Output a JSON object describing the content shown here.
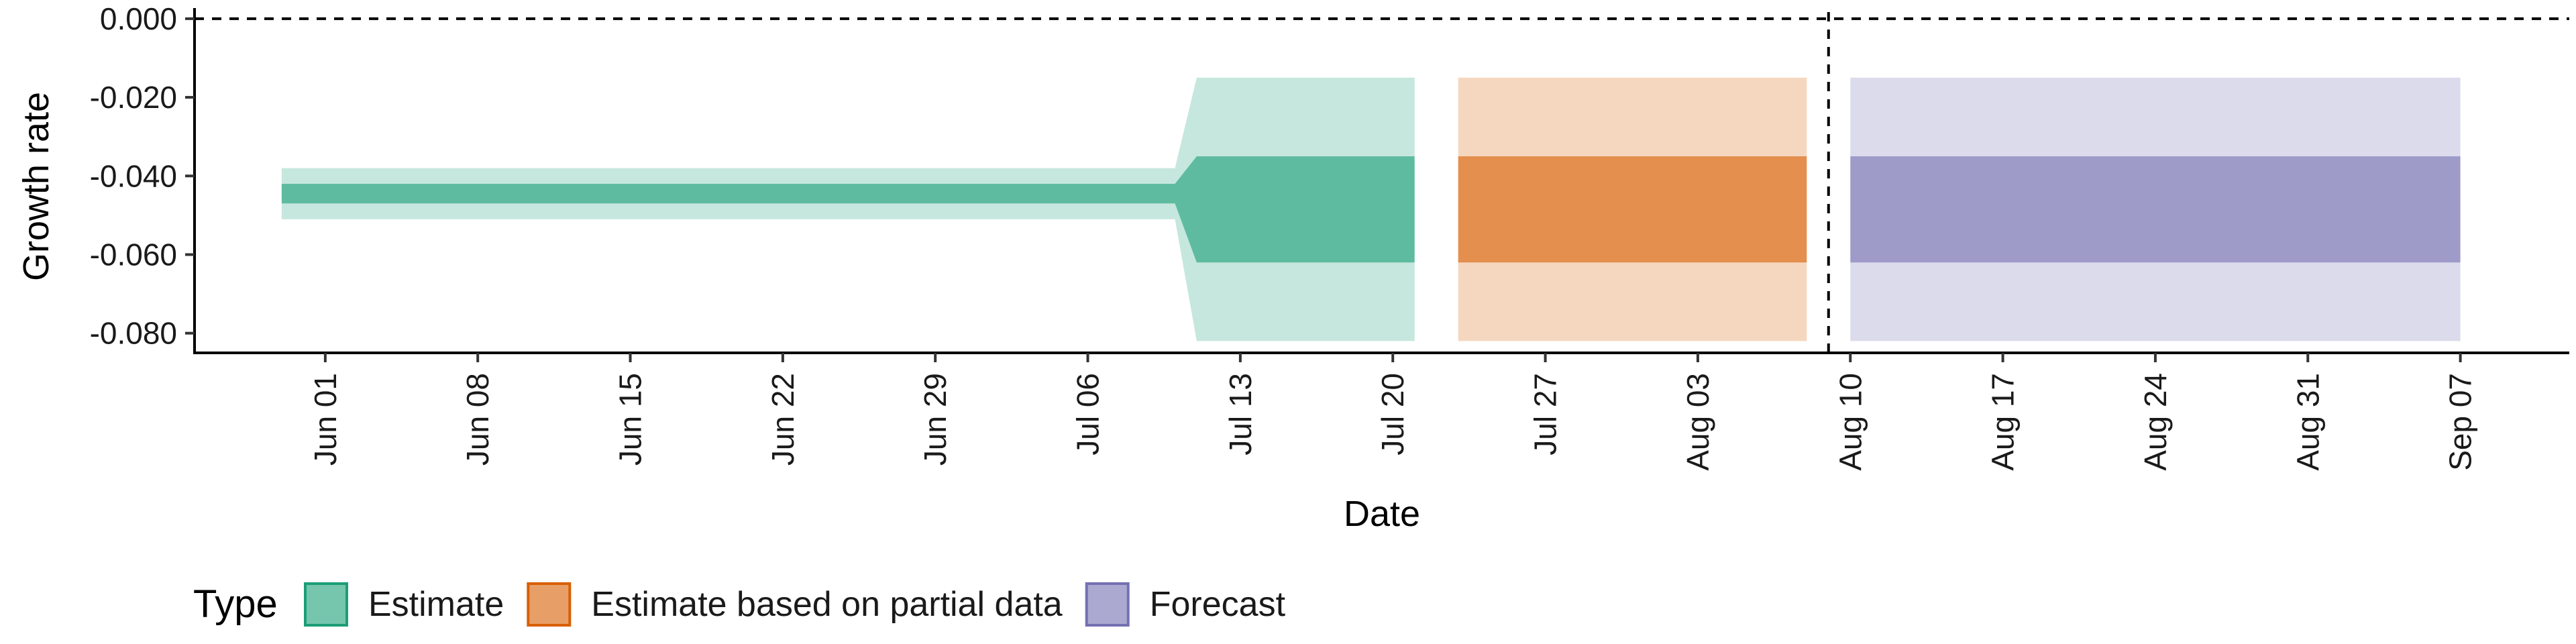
{
  "chart_data": {
    "type": "area",
    "xlabel": "Date",
    "ylabel": "Growth rate",
    "x_ticks": [
      "Jun 01",
      "Jun 08",
      "Jun 15",
      "Jun 22",
      "Jun 29",
      "Jul 06",
      "Jul 13",
      "Jul 20",
      "Jul 27",
      "Aug 03",
      "Aug 10",
      "Aug 17",
      "Aug 24",
      "Aug 31",
      "Sep 07"
    ],
    "y_ticks": [
      "0.000",
      "-0.020",
      "-0.040",
      "-0.060",
      "-0.080"
    ],
    "xlim": [
      "2020-05-26",
      "2020-09-12"
    ],
    "ylim": [
      -0.085,
      0.001
    ],
    "reference_lines": [
      {
        "axis": "y",
        "value": 0.0,
        "style": "dashed"
      },
      {
        "axis": "x",
        "value": "2020-08-09",
        "style": "dashed"
      }
    ],
    "legend": {
      "title": "Type",
      "placement": "bottom-left",
      "entries": [
        "Estimate",
        "Estimate based on partial data",
        "Forecast"
      ]
    },
    "series": [
      {
        "name": "Estimate",
        "color": "#1b9e77",
        "outer_alpha": 0.25,
        "inner_alpha": 0.6,
        "points": [
          {
            "date": "2020-05-30",
            "lower90": -0.051,
            "lower50": -0.047,
            "upper50": -0.042,
            "upper90": -0.038
          },
          {
            "date": "2020-07-10",
            "lower90": -0.051,
            "lower50": -0.047,
            "upper50": -0.042,
            "upper90": -0.038
          },
          {
            "date": "2020-07-11",
            "lower90": -0.082,
            "lower50": -0.062,
            "upper50": -0.035,
            "upper90": -0.015
          },
          {
            "date": "2020-07-21",
            "lower90": -0.082,
            "lower50": -0.062,
            "upper50": -0.035,
            "upper90": -0.015
          }
        ]
      },
      {
        "name": "Estimate based on partial data",
        "color": "#d95f02",
        "outer_alpha": 0.25,
        "inner_alpha": 0.6,
        "points": [
          {
            "date": "2020-07-23",
            "lower90": -0.082,
            "lower50": -0.062,
            "upper50": -0.035,
            "upper90": -0.015
          },
          {
            "date": "2020-08-08",
            "lower90": -0.082,
            "lower50": -0.062,
            "upper50": -0.035,
            "upper90": -0.015
          }
        ]
      },
      {
        "name": "Forecast",
        "color": "#7570b3",
        "outer_alpha": 0.25,
        "inner_alpha": 0.6,
        "points": [
          {
            "date": "2020-08-10",
            "lower90": -0.082,
            "lower50": -0.062,
            "upper50": -0.035,
            "upper90": -0.015
          },
          {
            "date": "2020-09-07",
            "lower90": -0.082,
            "lower50": -0.062,
            "upper50": -0.035,
            "upper90": -0.015
          }
        ]
      }
    ]
  }
}
